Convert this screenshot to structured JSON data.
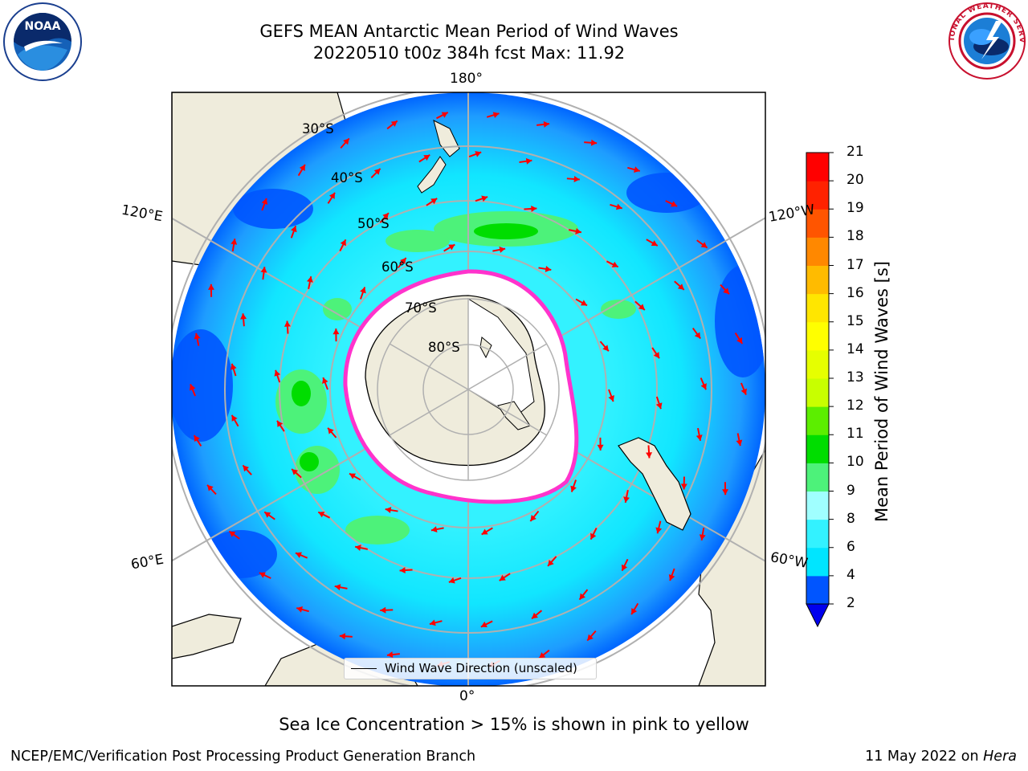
{
  "title": {
    "line1": "GEFS MEAN Antarctic Mean Period of Wind Waves",
    "line2": "20220510 t00z 384h fcst   Max: 11.92"
  },
  "logos": {
    "left": {
      "text": "NOAA",
      "ring_text": "NATIONAL OCEANIC AND ATMOSPHERIC ADMINISTRATION · U.S. DEPARTMENT OF COMMERCE",
      "icon": "noaa-logo"
    },
    "right": {
      "text": "NATIONAL WEATHER SERVICE",
      "icon": "nws-logo"
    }
  },
  "map": {
    "projection": "south-polar-stereographic",
    "longitude_labels": {
      "top": "180°",
      "bottom": "0°",
      "upper_left": "120°E",
      "upper_right": "120°W",
      "lower_left": "60°E",
      "lower_right": "60°W"
    },
    "latitude_labels": [
      "30°S",
      "40°S",
      "50°S",
      "60°S",
      "70°S",
      "80°S"
    ],
    "colors": {
      "land": "#efecdc",
      "ice_free_pole": "#ffffff",
      "sea_ice_edge": "#ff33cc",
      "wind_arrow": "#ff0000",
      "graticule": "#b0b0b0"
    }
  },
  "legend": {
    "label": "Wind Wave Direction (unscaled)"
  },
  "colorbar": {
    "title": "Mean Period of Wind Waves [s]",
    "ticks": [
      "2",
      "4",
      "6",
      "8",
      "9",
      "10",
      "11",
      "12",
      "13",
      "14",
      "15",
      "16",
      "17",
      "18",
      "19",
      "20",
      "21"
    ],
    "colors": [
      "#0055ff",
      "#00e5ff",
      "#33f2ff",
      "#a0ffff",
      "#4df27a",
      "#00dd00",
      "#5cee00",
      "#c8ff00",
      "#e6ff00",
      "#ffff00",
      "#ffe600",
      "#ffbb00",
      "#ff8800",
      "#ff5500",
      "#ff2200",
      "#ff0000"
    ],
    "extend_min_color": "#0000ee"
  },
  "caption": "Sea Ice Concentration > 15% is shown in pink to yellow",
  "footer": {
    "left": "NCEP/EMC/Verification Post Processing Product Generation Branch",
    "right_prefix": "11 May 2022 on ",
    "right_host": "Hera"
  }
}
